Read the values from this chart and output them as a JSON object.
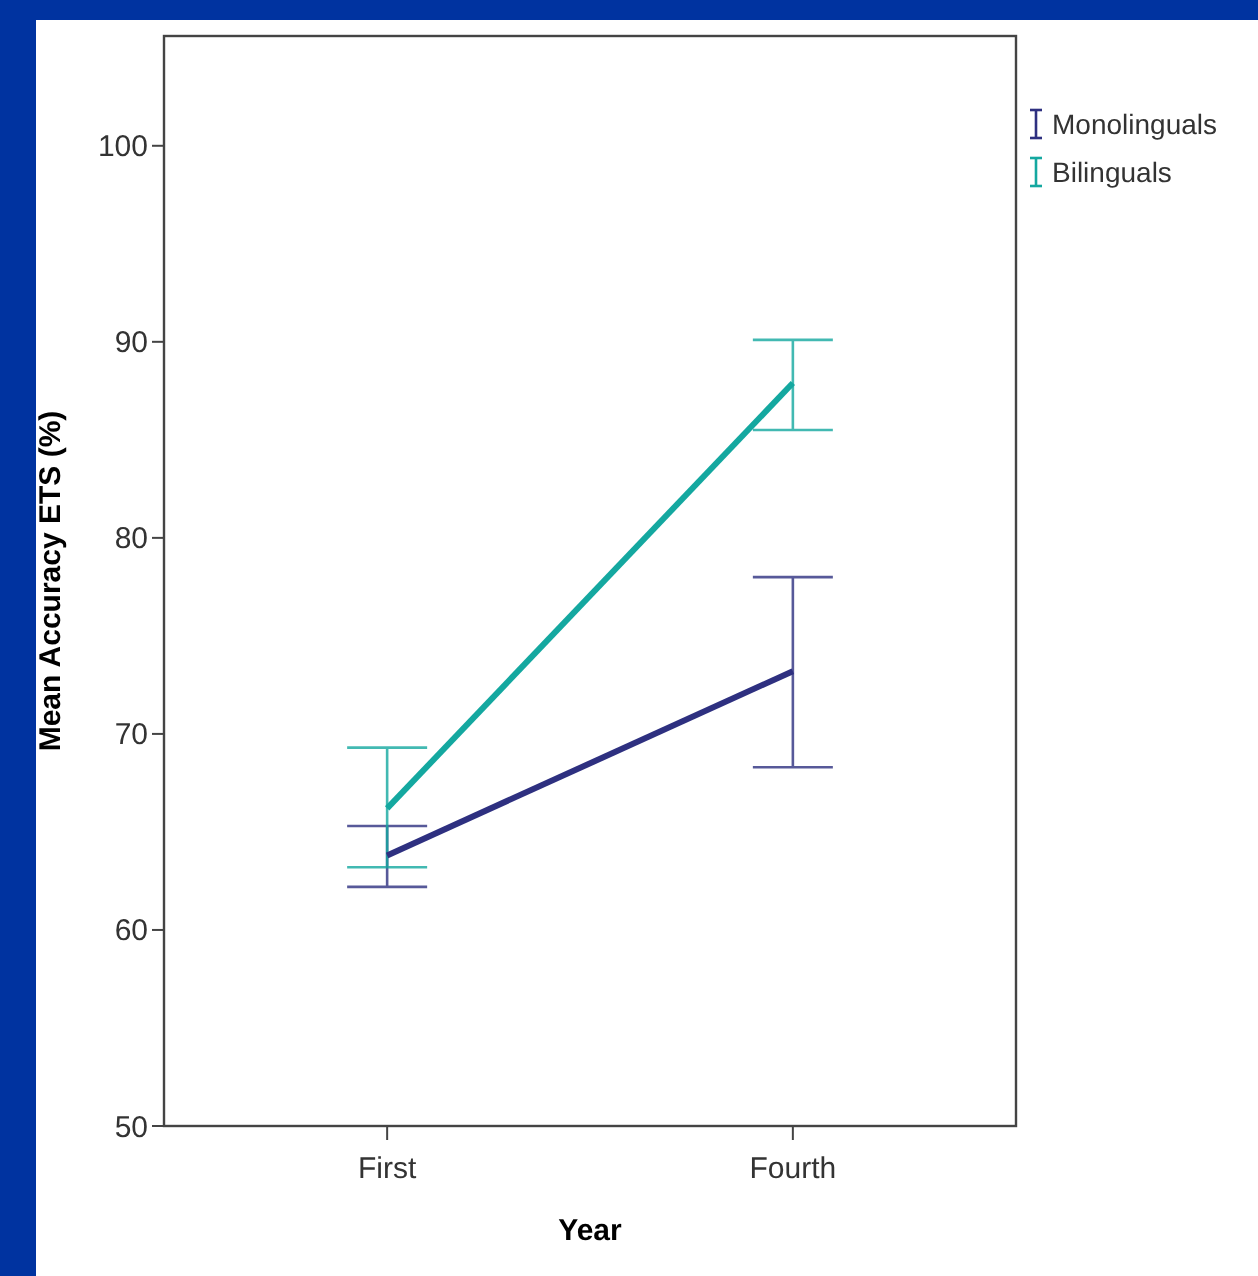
{
  "chart_data": {
    "type": "line",
    "xlabel": "Year",
    "ylabel": "Mean Accuracy ETS (%)",
    "categories": [
      "First",
      "Fourth"
    ],
    "series": [
      {
        "name": "Monolinguals",
        "color": "#2e3080",
        "values": [
          63.8,
          73.2
        ],
        "errors": [
          [
            62.2,
            65.3
          ],
          [
            68.3,
            78.0
          ]
        ]
      },
      {
        "name": "Bilinguals",
        "color": "#14a8a0",
        "values": [
          66.2,
          87.9
        ],
        "errors": [
          [
            63.2,
            69.3
          ],
          [
            85.5,
            90.1
          ]
        ]
      }
    ],
    "ylim": [
      50,
      105.6
    ],
    "yticks": [
      50,
      60,
      70,
      80,
      90,
      100
    ],
    "grid": false,
    "legend": "top right",
    "marker": "none"
  }
}
